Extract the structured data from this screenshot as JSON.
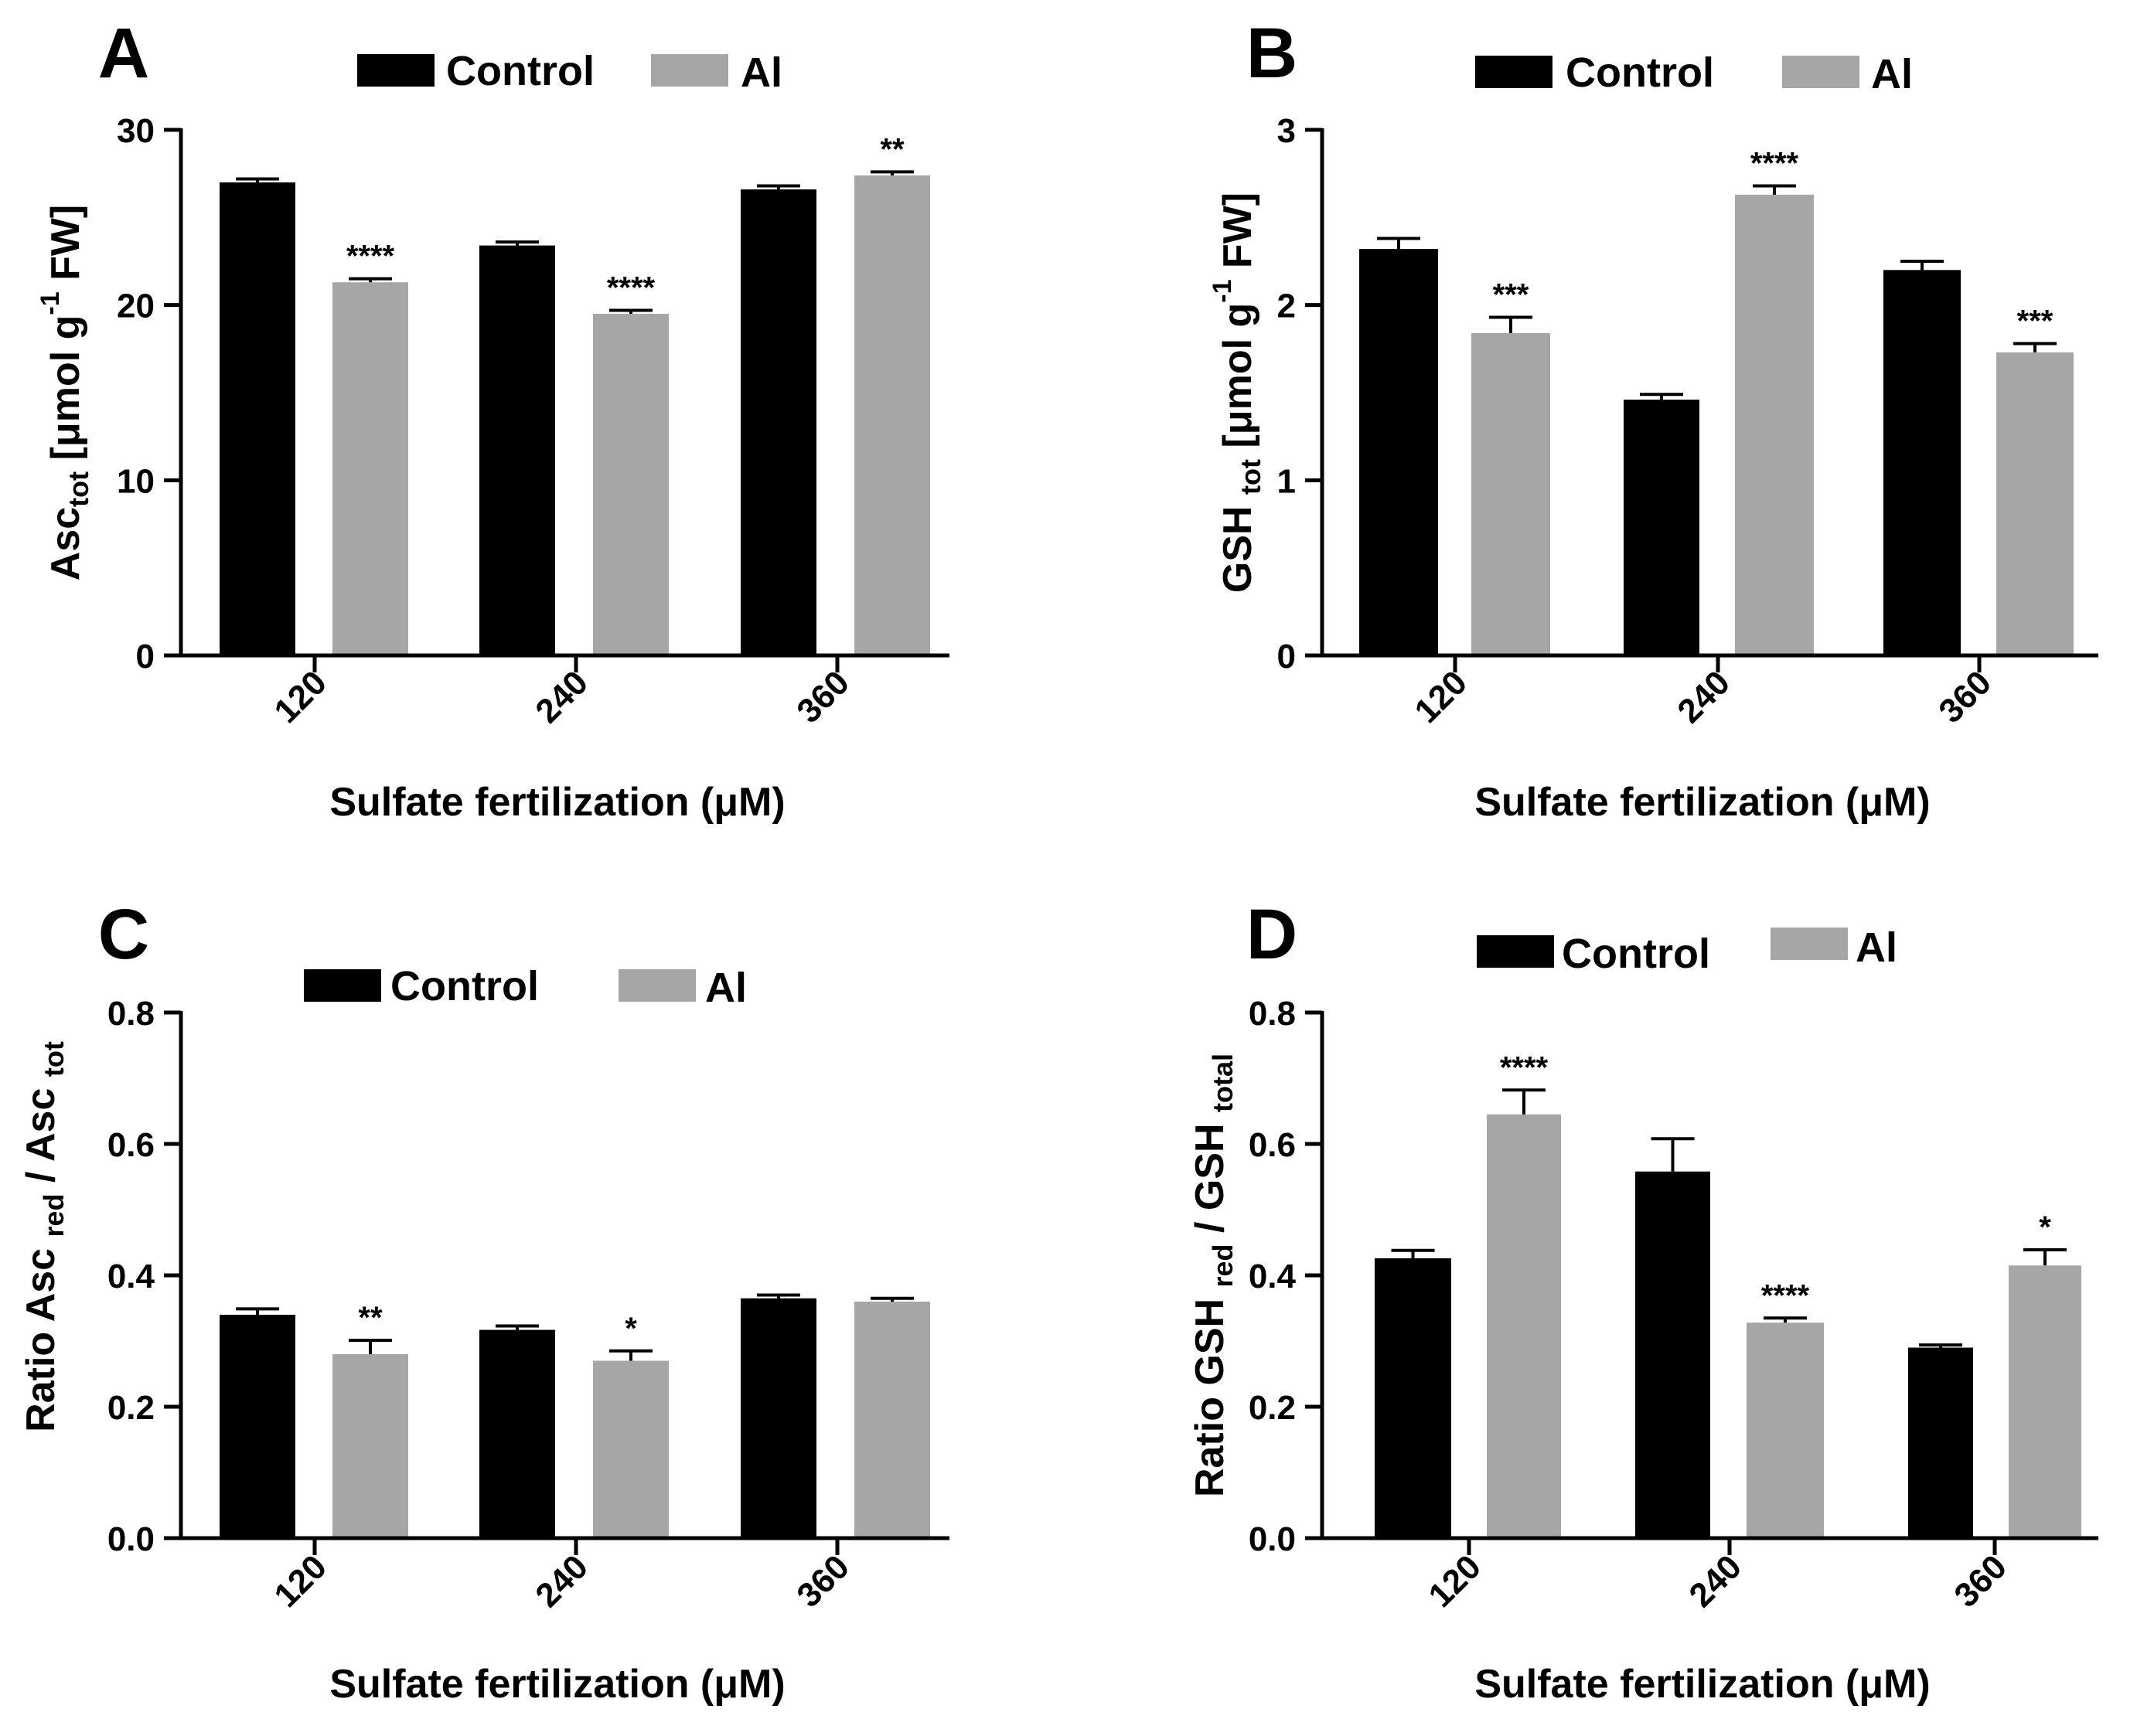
{
  "figure": {
    "colors": {
      "control": "#000000",
      "al": "#a6a6a6",
      "axis": "#000000"
    }
  },
  "chart_data": [
    {
      "panel": "A",
      "type": "bar",
      "categories": [
        "120",
        "240",
        "360"
      ],
      "series": [
        {
          "name": "Control",
          "values": [
            27.0,
            23.4,
            26.6
          ],
          "errors": [
            0.2,
            0.2,
            0.2
          ],
          "significance": [
            "",
            "",
            ""
          ]
        },
        {
          "name": "Al",
          "values": [
            21.3,
            19.5,
            27.4
          ],
          "errors": [
            0.2,
            0.2,
            0.2
          ],
          "significance": [
            "****",
            "****",
            "**"
          ]
        }
      ],
      "ylabel": {
        "main": "Asc",
        "sub": "tot",
        "tail": " [μmol g",
        "sup": "-1",
        "end": " FW]"
      },
      "xlabel": "Sulfate fertilization  (μM)",
      "ylim": [
        0,
        30
      ],
      "yticks": [
        "0",
        "10",
        "20",
        "30"
      ],
      "yticks_values": [
        0,
        10,
        20,
        30
      ],
      "legend": [
        "Control",
        "Al"
      ],
      "legend_position": "top-center"
    },
    {
      "panel": "B",
      "type": "bar",
      "categories": [
        "120",
        "240",
        "360"
      ],
      "series": [
        {
          "name": "Control",
          "values": [
            2.32,
            1.46,
            2.2
          ],
          "errors": [
            0.06,
            0.03,
            0.05
          ],
          "significance": [
            "",
            "",
            ""
          ]
        },
        {
          "name": "Al",
          "values": [
            1.84,
            2.63,
            1.73
          ],
          "errors": [
            0.09,
            0.05,
            0.05
          ],
          "significance": [
            "***",
            "****",
            "***"
          ]
        }
      ],
      "ylabel": {
        "main": "GSH ",
        "sub": "tot",
        "tail": " [μmol g",
        "sup": "-1",
        "end": " FW]"
      },
      "xlabel": "Sulfate fertilization  (μM)",
      "ylim": [
        0,
        3
      ],
      "yticks": [
        "0",
        "1",
        "2",
        "3"
      ],
      "yticks_values": [
        0,
        1,
        2,
        3
      ],
      "legend": [
        "Control",
        "Al"
      ],
      "legend_position": "top-center"
    },
    {
      "panel": "C",
      "type": "bar",
      "categories": [
        "120",
        "240",
        "360"
      ],
      "series": [
        {
          "name": "Control",
          "values": [
            0.34,
            0.317,
            0.365
          ],
          "errors": [
            0.009,
            0.006,
            0.005
          ],
          "significance": [
            "",
            "",
            ""
          ]
        },
        {
          "name": "Al",
          "values": [
            0.28,
            0.27,
            0.36
          ],
          "errors": [
            0.021,
            0.015,
            0.005
          ],
          "significance": [
            "**",
            "*",
            ""
          ]
        }
      ],
      "ylabel": {
        "main": "Ratio Asc ",
        "sub": "red",
        "tail": " / Asc ",
        "sup": "",
        "end": "",
        "sub2": "tot"
      },
      "xlabel": "Sulfate fertilization  (μM)",
      "ylim": [
        0,
        0.8
      ],
      "yticks": [
        "0.0",
        "0.2",
        "0.4",
        "0.6",
        "0.8"
      ],
      "yticks_values": [
        0,
        0.2,
        0.4,
        0.6,
        0.8
      ],
      "legend": [
        "Control",
        "Al"
      ],
      "legend_position": "top-center"
    },
    {
      "panel": "D",
      "type": "bar",
      "categories": [
        "120",
        "240",
        "360"
      ],
      "series": [
        {
          "name": "Control",
          "values": [
            0.426,
            0.558,
            0.29
          ],
          "errors": [
            0.012,
            0.05,
            0.004
          ],
          "significance": [
            "",
            "",
            ""
          ]
        },
        {
          "name": "Al",
          "values": [
            0.645,
            0.328,
            0.415
          ],
          "errors": [
            0.037,
            0.007,
            0.024
          ],
          "significance": [
            "****",
            "****",
            "*"
          ]
        }
      ],
      "ylabel": {
        "main": "Ratio GSH ",
        "sub": "red",
        "tail": " / GSH ",
        "sup": "",
        "end": "",
        "sub2": "total"
      },
      "xlabel": "Sulfate fertilization  (μM)",
      "ylim": [
        0,
        0.8
      ],
      "yticks": [
        "0.0",
        "0.2",
        "0.4",
        "0.6",
        "0.8"
      ],
      "yticks_values": [
        0,
        0.2,
        0.4,
        0.6,
        0.8
      ],
      "legend": [
        "Control",
        "Al"
      ],
      "legend_position": "top-center"
    }
  ]
}
